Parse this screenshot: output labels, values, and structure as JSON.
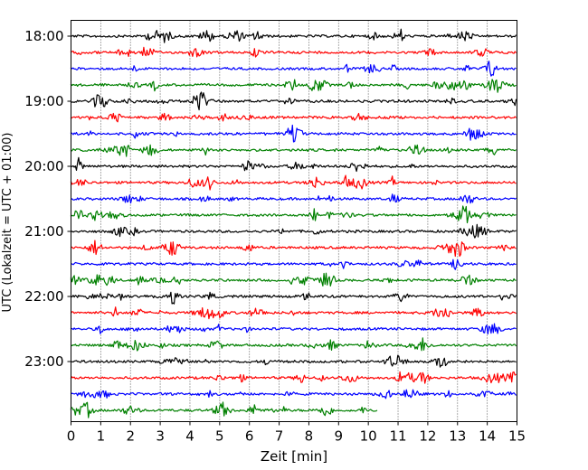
{
  "chart_data": {
    "type": "line",
    "title": "",
    "xlabel": "Zeit  [min]",
    "ylabel": "UTC (Lokalzeit = UTC + 01:00)",
    "xlim": [
      0,
      15
    ],
    "x_ticks": [
      "0",
      "1",
      "2",
      "3",
      "4",
      "5",
      "6",
      "7",
      "8",
      "9",
      "10",
      "11",
      "12",
      "13",
      "14",
      "15"
    ],
    "y_tick_labels": [
      "18:00",
      "19:00",
      "20:00",
      "21:00",
      "22:00",
      "23:00"
    ],
    "grid": "vertical dotted at every minute",
    "trace_interval_min": 15,
    "trace_colors_cycle": [
      "#000000",
      "#ff0000",
      "#0000ff",
      "#008000"
    ],
    "traces": [
      {
        "start": "18:00",
        "color": "#000000",
        "end_min": 15
      },
      {
        "start": "18:15",
        "color": "#ff0000",
        "end_min": 15
      },
      {
        "start": "18:30",
        "color": "#0000ff",
        "end_min": 15
      },
      {
        "start": "18:45",
        "color": "#008000",
        "end_min": 15
      },
      {
        "start": "19:00",
        "color": "#000000",
        "end_min": 15
      },
      {
        "start": "19:15",
        "color": "#ff0000",
        "end_min": 15
      },
      {
        "start": "19:30",
        "color": "#0000ff",
        "end_min": 15
      },
      {
        "start": "19:45",
        "color": "#008000",
        "end_min": 15
      },
      {
        "start": "20:00",
        "color": "#000000",
        "end_min": 15
      },
      {
        "start": "20:15",
        "color": "#ff0000",
        "end_min": 15
      },
      {
        "start": "20:30",
        "color": "#0000ff",
        "end_min": 15
      },
      {
        "start": "20:45",
        "color": "#008000",
        "end_min": 15
      },
      {
        "start": "21:00",
        "color": "#000000",
        "end_min": 15
      },
      {
        "start": "21:15",
        "color": "#ff0000",
        "end_min": 15
      },
      {
        "start": "21:30",
        "color": "#0000ff",
        "end_min": 15
      },
      {
        "start": "21:45",
        "color": "#008000",
        "end_min": 15
      },
      {
        "start": "22:00",
        "color": "#000000",
        "end_min": 15
      },
      {
        "start": "22:15",
        "color": "#ff0000",
        "end_min": 15
      },
      {
        "start": "22:30",
        "color": "#0000ff",
        "end_min": 15
      },
      {
        "start": "22:45",
        "color": "#008000",
        "end_min": 15
      },
      {
        "start": "23:00",
        "color": "#000000",
        "end_min": 15
      },
      {
        "start": "23:15",
        "color": "#ff0000",
        "end_min": 15
      },
      {
        "start": "23:30",
        "color": "#0000ff",
        "end_min": 15
      },
      {
        "start": "23:45",
        "color": "#008000",
        "end_min": 10.3
      }
    ]
  }
}
